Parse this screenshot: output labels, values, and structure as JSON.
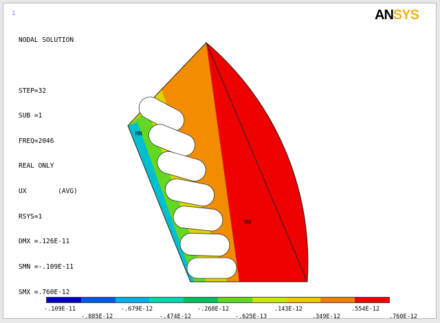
{
  "window_number": "1",
  "info_lines": [
    "NODAL SOLUTION",
    "",
    "STEP=32",
    "SUB =1",
    "FREQ=2046",
    "REAL ONLY",
    "UX        (AVG)",
    "RSYS=1",
    "DMX =.126E-11",
    "SMN =-.109E-11",
    "SMX =.760E-12"
  ],
  "logo": {
    "left": "AN",
    "right": "SYS"
  },
  "markers": {
    "min": "MN",
    "max": "MX"
  },
  "legend": {
    "colors": [
      "#0000c8",
      "#0058e8",
      "#00b0e8",
      "#00d8b0",
      "#00c060",
      "#60d820",
      "#c8e800",
      "#f0c800",
      "#f08000",
      "#f00000"
    ],
    "top_labels": [
      "-.109E-11",
      "-.679E-12",
      "-.268E-12",
      ".143E-12",
      ".554E-12"
    ],
    "bottom_labels": [
      "-.885E-12",
      "-.474E-12",
      "-.625E-13",
      ".349E-12",
      ".760E-12"
    ]
  }
}
